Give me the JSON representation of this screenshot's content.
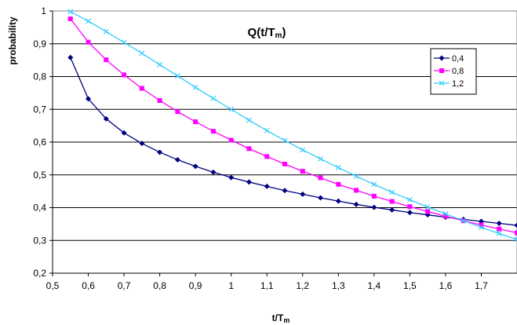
{
  "chart_data": {
    "type": "line",
    "title": "Q(t/Tm)",
    "title_main": "Q(t/T",
    "title_sub": "m",
    "title_end": ")",
    "xlabel": "t/Tm",
    "xlabel_main": "t/T",
    "xlabel_sub": "m",
    "ylabel": "probability",
    "xlim": [
      0.5,
      1.8
    ],
    "ylim": [
      0.2,
      1.0
    ],
    "grid": "horizontal",
    "legend_position": "top-right",
    "x_ticks": [
      "0,5",
      "0,6",
      "0,7",
      "0,8",
      "0,9",
      "1",
      "1,1",
      "1,2",
      "1,3",
      "1,4",
      "1,5",
      "1,6",
      "1,7"
    ],
    "y_ticks": [
      "0,2",
      "0,3",
      "0,4",
      "0,5",
      "0,6",
      "0,7",
      "0,8",
      "0,9",
      "1"
    ],
    "x": [
      0.55,
      0.6,
      0.65,
      0.7,
      0.75,
      0.8,
      0.85,
      0.9,
      0.95,
      1.0,
      1.05,
      1.1,
      1.15,
      1.2,
      1.25,
      1.3,
      1.35,
      1.4,
      1.45,
      1.5,
      1.55,
      1.6,
      1.65,
      1.7,
      1.75,
      1.8
    ],
    "series": [
      {
        "name": "0,4",
        "color": "#000080",
        "marker": "diamond",
        "values": [
          0.858,
          0.732,
          0.671,
          0.628,
          0.596,
          0.569,
          0.546,
          0.526,
          0.508,
          0.492,
          0.478,
          0.465,
          0.452,
          0.441,
          0.43,
          0.42,
          0.41,
          0.401,
          0.393,
          0.385,
          0.378,
          0.371,
          0.364,
          0.358,
          0.352,
          0.346
        ]
      },
      {
        "name": "0,8",
        "color": "#ff00ff",
        "marker": "square",
        "values": [
          0.976,
          0.905,
          0.851,
          0.805,
          0.764,
          0.727,
          0.693,
          0.662,
          0.633,
          0.606,
          0.58,
          0.556,
          0.533,
          0.511,
          0.491,
          0.471,
          0.453,
          0.435,
          0.419,
          0.403,
          0.388,
          0.374,
          0.36,
          0.347,
          0.335,
          0.323
        ]
      },
      {
        "name": "1,2",
        "color": "#33ccff",
        "marker": "x",
        "values": [
          0.998,
          0.969,
          0.937,
          0.904,
          0.871,
          0.836,
          0.802,
          0.767,
          0.733,
          0.7,
          0.667,
          0.635,
          0.605,
          0.576,
          0.549,
          0.522,
          0.496,
          0.471,
          0.447,
          0.424,
          0.402,
          0.381,
          0.36,
          0.34,
          0.321,
          0.303
        ]
      }
    ]
  }
}
